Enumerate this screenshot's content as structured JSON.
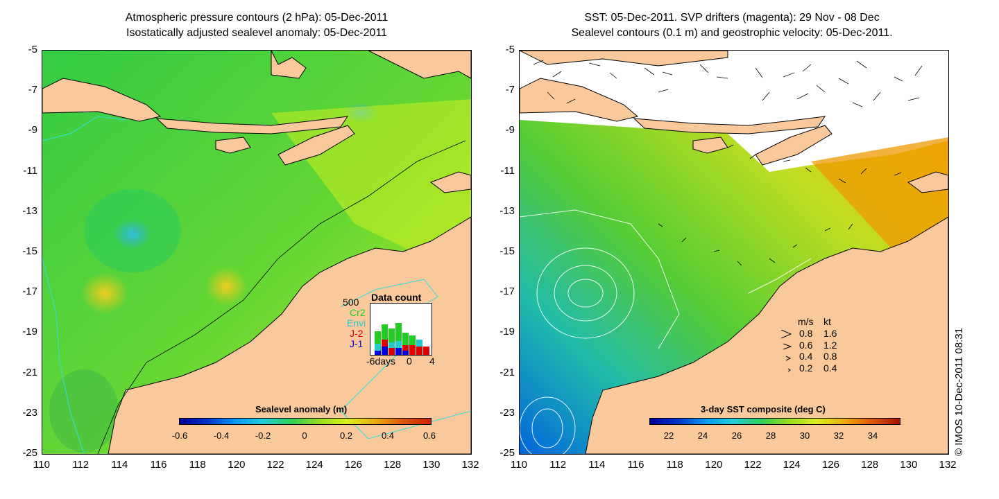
{
  "left_panel": {
    "title_line1": "Atmospheric pressure contours (2 hPa): 05-Dec-2011",
    "title_line2": "Isostatically adjusted sealevel anomaly: 05-Dec-2011",
    "colorbar": {
      "label": "Sealevel anomaly (m)",
      "ticks": [
        "-0.6",
        "-0.4",
        "-0.2",
        "0",
        "0.2",
        "0.4",
        "0.6"
      ]
    },
    "data_count": {
      "title": "Data count",
      "max_label": "500",
      "series": [
        {
          "name": "Cr2",
          "color": "#22cc22"
        },
        {
          "name": "Envi",
          "color": "#22cccc"
        },
        {
          "name": "J-2",
          "color": "#dd0000"
        },
        {
          "name": "J-1",
          "color": "#0000dd"
        }
      ],
      "xlabels": [
        "-6days",
        "0",
        "4"
      ]
    }
  },
  "right_panel": {
    "title_line1": "SST: 05-Dec-2011. SVP drifters (magenta): 29 Nov - 08 Dec",
    "title_line2": "Sealevel contours (0.1 m) and geostrophic velocity: 05-Dec-2011.",
    "colorbar": {
      "label": "3-day SST composite (deg C)",
      "ticks": [
        "22",
        "24",
        "26",
        "28",
        "30",
        "32",
        "34"
      ]
    },
    "velocity_legend": {
      "headers": [
        "m/s",
        "kt"
      ],
      "rows": [
        [
          "0.8",
          "1.6"
        ],
        [
          "0.6",
          "1.2"
        ],
        [
          "0.4",
          "0.8"
        ],
        [
          "0.2",
          "0.4"
        ]
      ]
    }
  },
  "axes": {
    "y_ticks": [
      "-5",
      "-7",
      "-9",
      "-11",
      "-13",
      "-15",
      "-17",
      "-19",
      "-21",
      "-23",
      "-25"
    ],
    "x_ticks": [
      "110",
      "112",
      "114",
      "116",
      "118",
      "120",
      "122",
      "124",
      "126",
      "128",
      "130",
      "132"
    ]
  },
  "copyright": "© IMOS 10-Dec-2011 08:31",
  "colors": {
    "land": "#f9c89b",
    "ocean_green": "#44cc44",
    "ocean_yellow": "#ccee22",
    "sst_orange": "#ee9900"
  }
}
